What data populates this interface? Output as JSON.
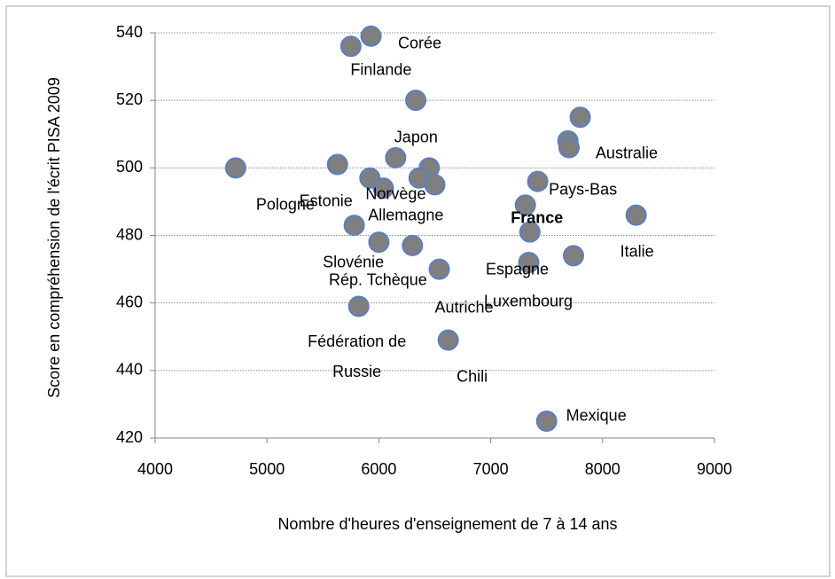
{
  "chart_data": {
    "type": "scatter",
    "x_label": "Nombre d'heures d'enseignement de 7 à 14 ans",
    "y_label": "Score en compréhension de l'écrit PISA 2009",
    "color": "#7f7f7f",
    "edge_color": "#5b7fc0",
    "grid": true,
    "xlim": [
      4000,
      9000
    ],
    "xticks": [
      4000,
      5000,
      6000,
      7000,
      8000,
      9000
    ],
    "ylim": [
      420,
      540
    ],
    "yticks": [
      420,
      440,
      460,
      480,
      500,
      520,
      540
    ],
    "x": [
      5930,
      5750,
      6330,
      7800,
      7690,
      7700,
      4720,
      5630,
      6150,
      6450,
      5920,
      6040,
      6360,
      6500,
      7420,
      7310,
      8300,
      7350,
      5780,
      6000,
      6300,
      7740,
      7340,
      6540,
      5820,
      6620,
      7500
    ],
    "values": [
      539,
      536,
      520,
      515,
      508,
      506,
      500,
      501,
      503,
      500,
      497,
      494,
      497,
      495,
      496,
      489,
      486,
      481,
      483,
      478,
      477,
      474,
      472,
      470,
      459,
      449,
      425
    ],
    "point_labels": [
      "Corée",
      "Finlande",
      null,
      null,
      null,
      "Australie",
      "Pologne",
      "Estonie",
      "Japon",
      null,
      null,
      "Norvège",
      "Allemagne",
      null,
      "Pays-Bas",
      null,
      "Italie",
      "France",
      "Slovénie",
      "Rép. Tchèque",
      null,
      "Luxembourg",
      "Espagne",
      "Autriche",
      "Fédération de Russie",
      "Chili",
      "Mexique"
    ]
  }
}
